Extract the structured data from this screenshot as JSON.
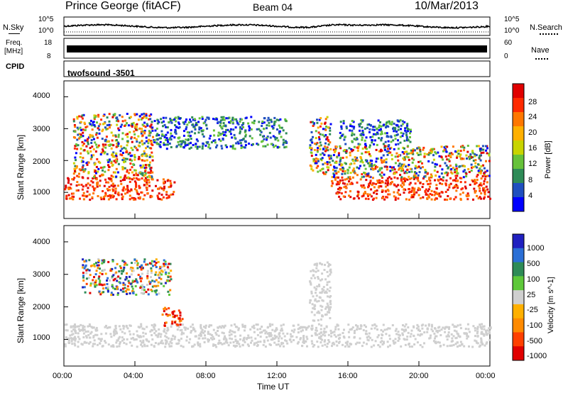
{
  "header": {
    "station": "Prince George (fitACF)",
    "beam": "Beam 04",
    "date": "10/Mar/2013"
  },
  "strip": {
    "nsky_label": "N.Sky",
    "nsky_ticks": [
      "10^5",
      "10^0"
    ],
    "nsearch_label": "N.Search",
    "nsearch_ticks": [
      "10^5",
      "10^0"
    ],
    "freq_label": "Freq.",
    "freq_unit": "[MHz]",
    "freq_ticks": [
      "18",
      "8"
    ],
    "nave_label": "Nave",
    "nave_ticks": [
      "60",
      "0"
    ],
    "cpid_label": "CPID",
    "cpid_value": "twofsound -3501"
  },
  "axes": {
    "ylabel": "Slant Range [km]",
    "yticks": [
      "4000",
      "3000",
      "2000",
      "1000"
    ],
    "xlabel": "Time UT",
    "xticks": [
      "00:00",
      "04:00",
      "08:00",
      "12:00",
      "16:00",
      "20:00",
      "00:00"
    ]
  },
  "colors": {
    "power_scale": [
      "#0000ff",
      "#1f4fbf",
      "#2e8b57",
      "#66c23a",
      "#c8d400",
      "#ffb000",
      "#ff7700",
      "#ff2a00",
      "#e00000"
    ],
    "velocity_scale": [
      "#2020c0",
      "#2b6fd6",
      "#2e8b57",
      "#5ec83a",
      "#cfcfcf",
      "#ffb000",
      "#ff8a00",
      "#ff4000",
      "#e00000"
    ]
  },
  "chart_data": [
    {
      "type": "heatmap",
      "title": "",
      "quantity": "Power",
      "colorbar_label": "Power [dB]",
      "colorbar_ticks": [
        "28",
        "24",
        "20",
        "16",
        "12",
        "8",
        "4"
      ],
      "xlabel": "Time UT",
      "ylabel": "Slant Range [km]",
      "xlim": [
        "00:00",
        "24:00"
      ],
      "ylim": [
        180,
        4500
      ],
      "regions": [
        {
          "t0": 0.0,
          "t1": 6.2,
          "r0": 800,
          "r1": 1500,
          "level": "high"
        },
        {
          "t0": 0.5,
          "t1": 5.0,
          "r0": 1500,
          "r1": 3500,
          "level": "mixed"
        },
        {
          "t0": 5.0,
          "t1": 12.5,
          "r0": 2400,
          "r1": 3400,
          "level": "low"
        },
        {
          "t0": 13.8,
          "t1": 15.0,
          "r0": 1600,
          "r1": 3400,
          "level": "mixed"
        },
        {
          "t0": 15.0,
          "t1": 24.0,
          "r0": 800,
          "r1": 1500,
          "level": "high"
        },
        {
          "t0": 15.0,
          "t1": 24.0,
          "r0": 1500,
          "r1": 2500,
          "level": "mixed"
        },
        {
          "t0": 15.5,
          "t1": 19.5,
          "r0": 2500,
          "r1": 3300,
          "level": "low"
        }
      ]
    },
    {
      "type": "heatmap",
      "title": "",
      "quantity": "Velocity",
      "colorbar_label": "Velocity [m s^-1]",
      "colorbar_ticks": [
        "1000",
        "500",
        "100",
        "25",
        "-25",
        "-100",
        "-500",
        "-1000"
      ],
      "xlabel": "Time UT",
      "ylabel": "Slant Range [km]",
      "xlim": [
        "00:00",
        "24:00"
      ],
      "ylim": [
        180,
        4500
      ],
      "regions": [
        {
          "t0": 0.0,
          "t1": 24.0,
          "r0": 800,
          "r1": 1500,
          "level": "ground"
        },
        {
          "t0": 5.5,
          "t1": 6.7,
          "r0": 1400,
          "r1": 2000,
          "level": "negative"
        },
        {
          "t0": 1.0,
          "t1": 6.0,
          "r0": 2400,
          "r1": 3500,
          "level": "mixed"
        },
        {
          "t0": 13.8,
          "t1": 15.0,
          "r0": 1600,
          "r1": 3400,
          "level": "ground"
        }
      ]
    }
  ]
}
